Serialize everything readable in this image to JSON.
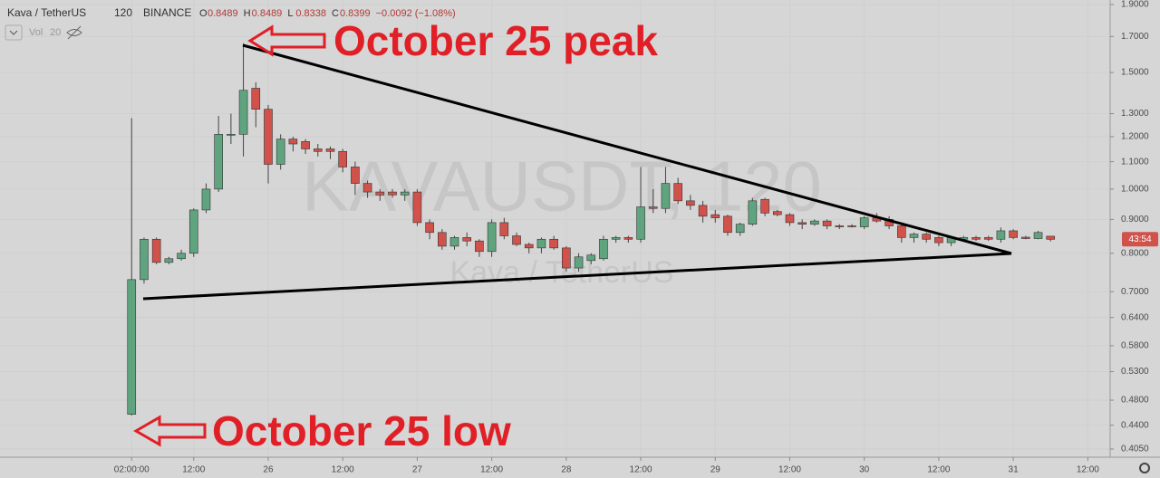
{
  "chart_data": {
    "type": "candlestick",
    "symbol": "Kava / TetherUS",
    "interval": "120",
    "exchange": "BINANCE",
    "ohlc_header": [
      {
        "label": "O",
        "value": "0.8489"
      },
      {
        "label": "H",
        "value": "0.8489"
      },
      {
        "label": "L",
        "value": "0.8338"
      },
      {
        "label": "C",
        "value": "0.8399"
      }
    ],
    "change": "−0.0092 (−1.08%)",
    "volume_label": "Vol",
    "volume_length": "20",
    "watermark": "KAVAUSDT, 120",
    "watermark_subtitle": "Kava / TetherUS",
    "price_tag": "43:54",
    "annotations": [
      "October 25 peak",
      "October 25 low"
    ],
    "up_color": "#5fa47f",
    "down_color": "#d1524b",
    "log_scale": true,
    "ylim": [
      0.405,
      1.9
    ],
    "yticks": [
      {
        "value": 0.405,
        "label": "0.4050"
      },
      {
        "value": 0.44,
        "label": "0.4400"
      },
      {
        "value": 0.48,
        "label": "0.4800"
      },
      {
        "value": 0.53,
        "label": "0.5300"
      },
      {
        "value": 0.58,
        "label": "0.5800"
      },
      {
        "value": 0.64,
        "label": "0.6400"
      },
      {
        "value": 0.7,
        "label": "0.7000"
      },
      {
        "value": 0.8,
        "label": "0.8000"
      },
      {
        "value": 0.9,
        "label": "0.9000"
      },
      {
        "value": 1,
        "label": "1.0000"
      },
      {
        "value": 1.1,
        "label": "1.1000"
      },
      {
        "value": 1.2,
        "label": "1.2000"
      },
      {
        "value": 1.3,
        "label": "1.3000"
      },
      {
        "value": 1.5,
        "label": "1.5000"
      },
      {
        "value": 1.7,
        "label": "1.7000"
      },
      {
        "value": 1.9,
        "label": "1.9000"
      }
    ],
    "xlim": [
      -10.6,
      78.8
    ],
    "xticks": [
      {
        "value": 0,
        "label": "02:00:00"
      },
      {
        "value": 5,
        "label": "12:00"
      },
      {
        "value": 11,
        "label": "26"
      },
      {
        "value": 17,
        "label": "12:00"
      },
      {
        "value": 23,
        "label": "27"
      },
      {
        "value": 29,
        "label": "12:00"
      },
      {
        "value": 35,
        "label": "28"
      },
      {
        "value": 41,
        "label": "12:00"
      },
      {
        "value": 47,
        "label": "29"
      },
      {
        "value": 53,
        "label": "12:00"
      },
      {
        "value": 59,
        "label": "30"
      },
      {
        "value": 65,
        "label": "12:00"
      },
      {
        "value": 71,
        "label": "31"
      },
      {
        "value": 77,
        "label": "12:00"
      }
    ],
    "open": [
      0.457,
      0.73,
      0.84,
      0.775,
      0.785,
      0.8,
      0.93,
      1.0,
      1.21,
      1.21,
      1.42,
      1.32,
      1.09,
      1.19,
      1.18,
      1.15,
      1.15,
      1.14,
      1.08,
      1.02,
      0.99,
      0.99,
      0.98,
      0.99,
      0.89,
      0.86,
      0.82,
      0.845,
      0.835,
      0.805,
      0.89,
      0.85,
      0.825,
      0.815,
      0.84,
      0.815,
      0.76,
      0.78,
      0.785,
      0.84,
      0.845,
      0.84,
      0.94,
      0.935,
      1.02,
      0.96,
      0.945,
      0.915,
      0.91,
      0.86,
      0.885,
      0.965,
      0.925,
      0.915,
      0.89,
      0.885,
      0.895,
      0.88,
      0.88,
      0.877,
      0.905,
      0.9,
      0.88,
      0.845,
      0.855,
      0.845,
      0.83,
      0.84,
      0.845,
      0.845,
      0.84,
      0.865,
      0.846,
      0.842,
      0.8489
    ],
    "high": [
      1.28,
      0.845,
      0.845,
      0.79,
      0.81,
      0.935,
      1.02,
      1.29,
      1.3,
      1.66,
      1.45,
      1.34,
      1.21,
      1.2,
      1.19,
      1.17,
      1.16,
      1.15,
      1.1,
      1.03,
      1.0,
      1.0,
      1.0,
      1.0,
      0.9,
      0.87,
      0.85,
      0.86,
      0.84,
      0.9,
      0.905,
      0.86,
      0.83,
      0.845,
      0.85,
      0.82,
      0.8,
      0.8,
      0.85,
      0.85,
      0.85,
      1.08,
      1.0,
      1.08,
      1.04,
      0.98,
      0.96,
      0.93,
      0.915,
      0.89,
      0.97,
      0.97,
      0.93,
      0.92,
      0.9,
      0.9,
      0.9,
      0.885,
      0.885,
      0.91,
      0.92,
      0.91,
      0.89,
      0.86,
      0.86,
      0.85,
      0.85,
      0.85,
      0.85,
      0.85,
      0.875,
      0.87,
      0.85,
      0.865,
      0.8489
    ],
    "low": [
      0.455,
      0.72,
      0.77,
      0.77,
      0.78,
      0.79,
      0.92,
      0.99,
      1.17,
      1.12,
      1.24,
      1.02,
      1.07,
      1.14,
      1.13,
      1.12,
      1.11,
      1.06,
      0.98,
      0.97,
      0.96,
      0.97,
      0.96,
      0.88,
      0.84,
      0.81,
      0.81,
      0.82,
      0.79,
      0.79,
      0.84,
      0.82,
      0.8,
      0.8,
      0.81,
      0.75,
      0.75,
      0.77,
      0.78,
      0.83,
      0.83,
      0.83,
      0.92,
      0.92,
      0.95,
      0.93,
      0.89,
      0.89,
      0.85,
      0.85,
      0.88,
      0.91,
      0.91,
      0.88,
      0.87,
      0.88,
      0.87,
      0.87,
      0.875,
      0.87,
      0.89,
      0.87,
      0.83,
      0.83,
      0.83,
      0.82,
      0.82,
      0.835,
      0.835,
      0.835,
      0.83,
      0.84,
      0.84,
      0.84,
      0.8338
    ],
    "close": [
      0.73,
      0.84,
      0.775,
      0.785,
      0.8,
      0.93,
      1.0,
      1.21,
      1.21,
      1.41,
      1.32,
      1.09,
      1.19,
      1.17,
      1.15,
      1.14,
      1.14,
      1.08,
      1.02,
      0.99,
      0.98,
      0.98,
      0.99,
      0.89,
      0.86,
      0.82,
      0.845,
      0.835,
      0.805,
      0.89,
      0.85,
      0.825,
      0.815,
      0.84,
      0.815,
      0.76,
      0.79,
      0.795,
      0.84,
      0.845,
      0.84,
      0.94,
      0.935,
      1.02,
      0.96,
      0.945,
      0.91,
      0.905,
      0.86,
      0.885,
      0.96,
      0.92,
      0.915,
      0.89,
      0.885,
      0.895,
      0.88,
      0.877,
      0.878,
      0.905,
      0.895,
      0.88,
      0.845,
      0.855,
      0.84,
      0.83,
      0.845,
      0.845,
      0.84,
      0.84,
      0.865,
      0.845,
      0.842,
      0.86,
      0.8399
    ]
  }
}
